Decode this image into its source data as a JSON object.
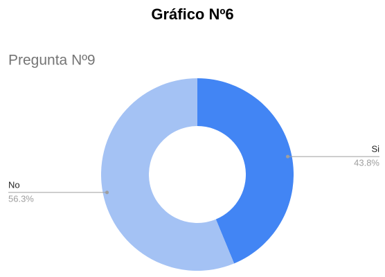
{
  "chart_data": {
    "type": "donut",
    "title": "Gráfico Nº6",
    "subtitle": "Pregunta Nº9",
    "categories": [
      "Si",
      "No"
    ],
    "values": [
      43.8,
      56.3
    ],
    "value_labels": [
      "43.8%",
      "56.3%"
    ],
    "colors": [
      "#4285f4",
      "#a4c2f4"
    ]
  }
}
